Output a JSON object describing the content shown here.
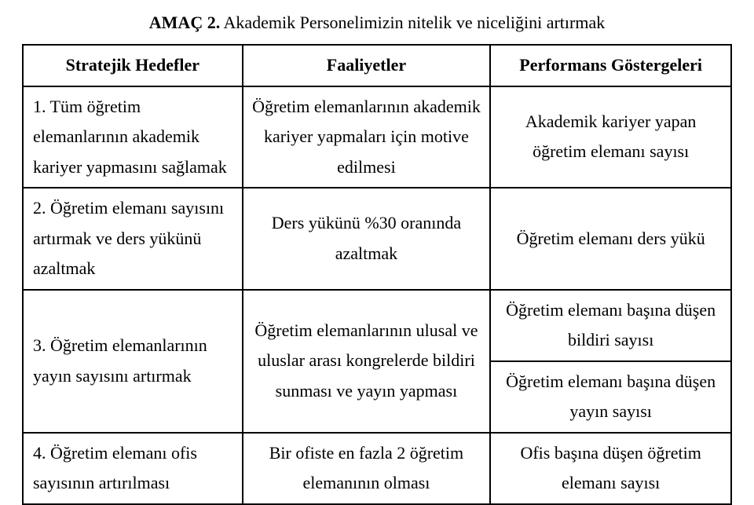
{
  "title_prefix": "AMAÇ 2.",
  "title_rest": " Akademik Personelimizin nitelik ve niceliğini artırmak",
  "headers": {
    "col1": "Stratejik Hedefler",
    "col2": "Faaliyetler",
    "col3": "Performans Göstergeleri"
  },
  "rows": [
    {
      "hedef": "1. Tüm öğretim elemanlarının akademik kariyer yapmasını sağlamak",
      "faaliyet": "Öğretim elemanlarının akademik kariyer yapmaları için motive edilmesi",
      "gosterge": "Akademik kariyer yapan öğretim elemanı sayısı"
    },
    {
      "hedef": "2. Öğretim elemanı sayısını artırmak ve ders yükünü azaltmak",
      "faaliyet": "Ders yükünü %30 oranında azaltmak",
      "gosterge": "Öğretim elemanı ders yükü"
    },
    {
      "hedef": "3. Öğretim elemanlarının yayın sayısını artırmak",
      "faaliyet": "Öğretim elemanlarının ulusal ve uluslar arası kongrelerde bildiri sunması ve yayın yapması",
      "gosterge_a": "Öğretim elemanı başına düşen bildiri sayısı",
      "gosterge_b": "Öğretim elemanı başına düşen yayın sayısı"
    },
    {
      "hedef": "4. Öğretim elemanı ofis sayısının artırılması",
      "faaliyet": "Bir ofiste en fazla 2 öğretim elemanının olması",
      "gosterge": "Ofis başına düşen öğretim elemanı sayısı"
    }
  ]
}
